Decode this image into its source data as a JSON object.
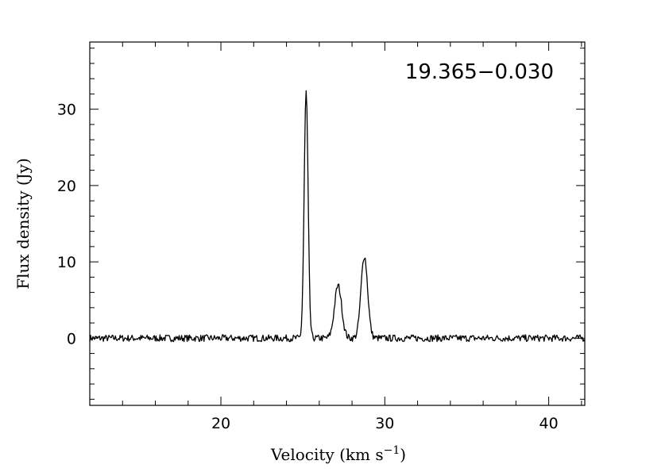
{
  "chart_data": {
    "type": "line",
    "title": "",
    "annotation": "19.365−0.030",
    "xlabel": "Velocity (km s",
    "xlabel_sup": "−1",
    "xlabel_tail": ")",
    "ylabel": "Flux density (Jy)",
    "xlim": [
      12.0,
      42.2
    ],
    "ylim": [
      -8.8,
      38.8
    ],
    "x_ticks": [
      20,
      30,
      40
    ],
    "y_ticks": [
      0,
      10,
      20,
      30
    ],
    "x_minor_step": 2,
    "y_minor_step": 2,
    "grid": false,
    "line_color": "#000000",
    "series": [
      {
        "peaks": [
          {
            "center": 25.2,
            "amplitude": 32.3
          },
          {
            "center": 27.15,
            "amplitude": 6.9
          },
          {
            "center": 28.75,
            "amplitude": 10.8
          }
        ],
        "x": [
          12.0,
          14.0,
          16.0,
          18.0,
          20.0,
          22.0,
          23.5,
          24.5,
          24.9,
          25.05,
          25.2,
          25.35,
          25.5,
          25.7,
          26.0,
          26.5,
          26.9,
          27.15,
          27.4,
          27.8,
          28.2,
          28.5,
          28.75,
          29.0,
          29.3,
          29.8,
          30.5,
          32.0,
          34.0,
          36.0,
          38.0,
          40.0,
          42.2
        ],
        "y": [
          0.1,
          0.1,
          0.0,
          -0.1,
          0.0,
          0.0,
          0.0,
          0.8,
          5.5,
          22.0,
          32.3,
          22.0,
          5.5,
          0.5,
          0.1,
          0.5,
          4.8,
          6.9,
          5.5,
          1.5,
          1.8,
          6.8,
          10.8,
          7.2,
          1.8,
          0.6,
          0.1,
          0.0,
          0.0,
          0.0,
          0.1,
          0.0,
          0.0
        ]
      }
    ]
  }
}
